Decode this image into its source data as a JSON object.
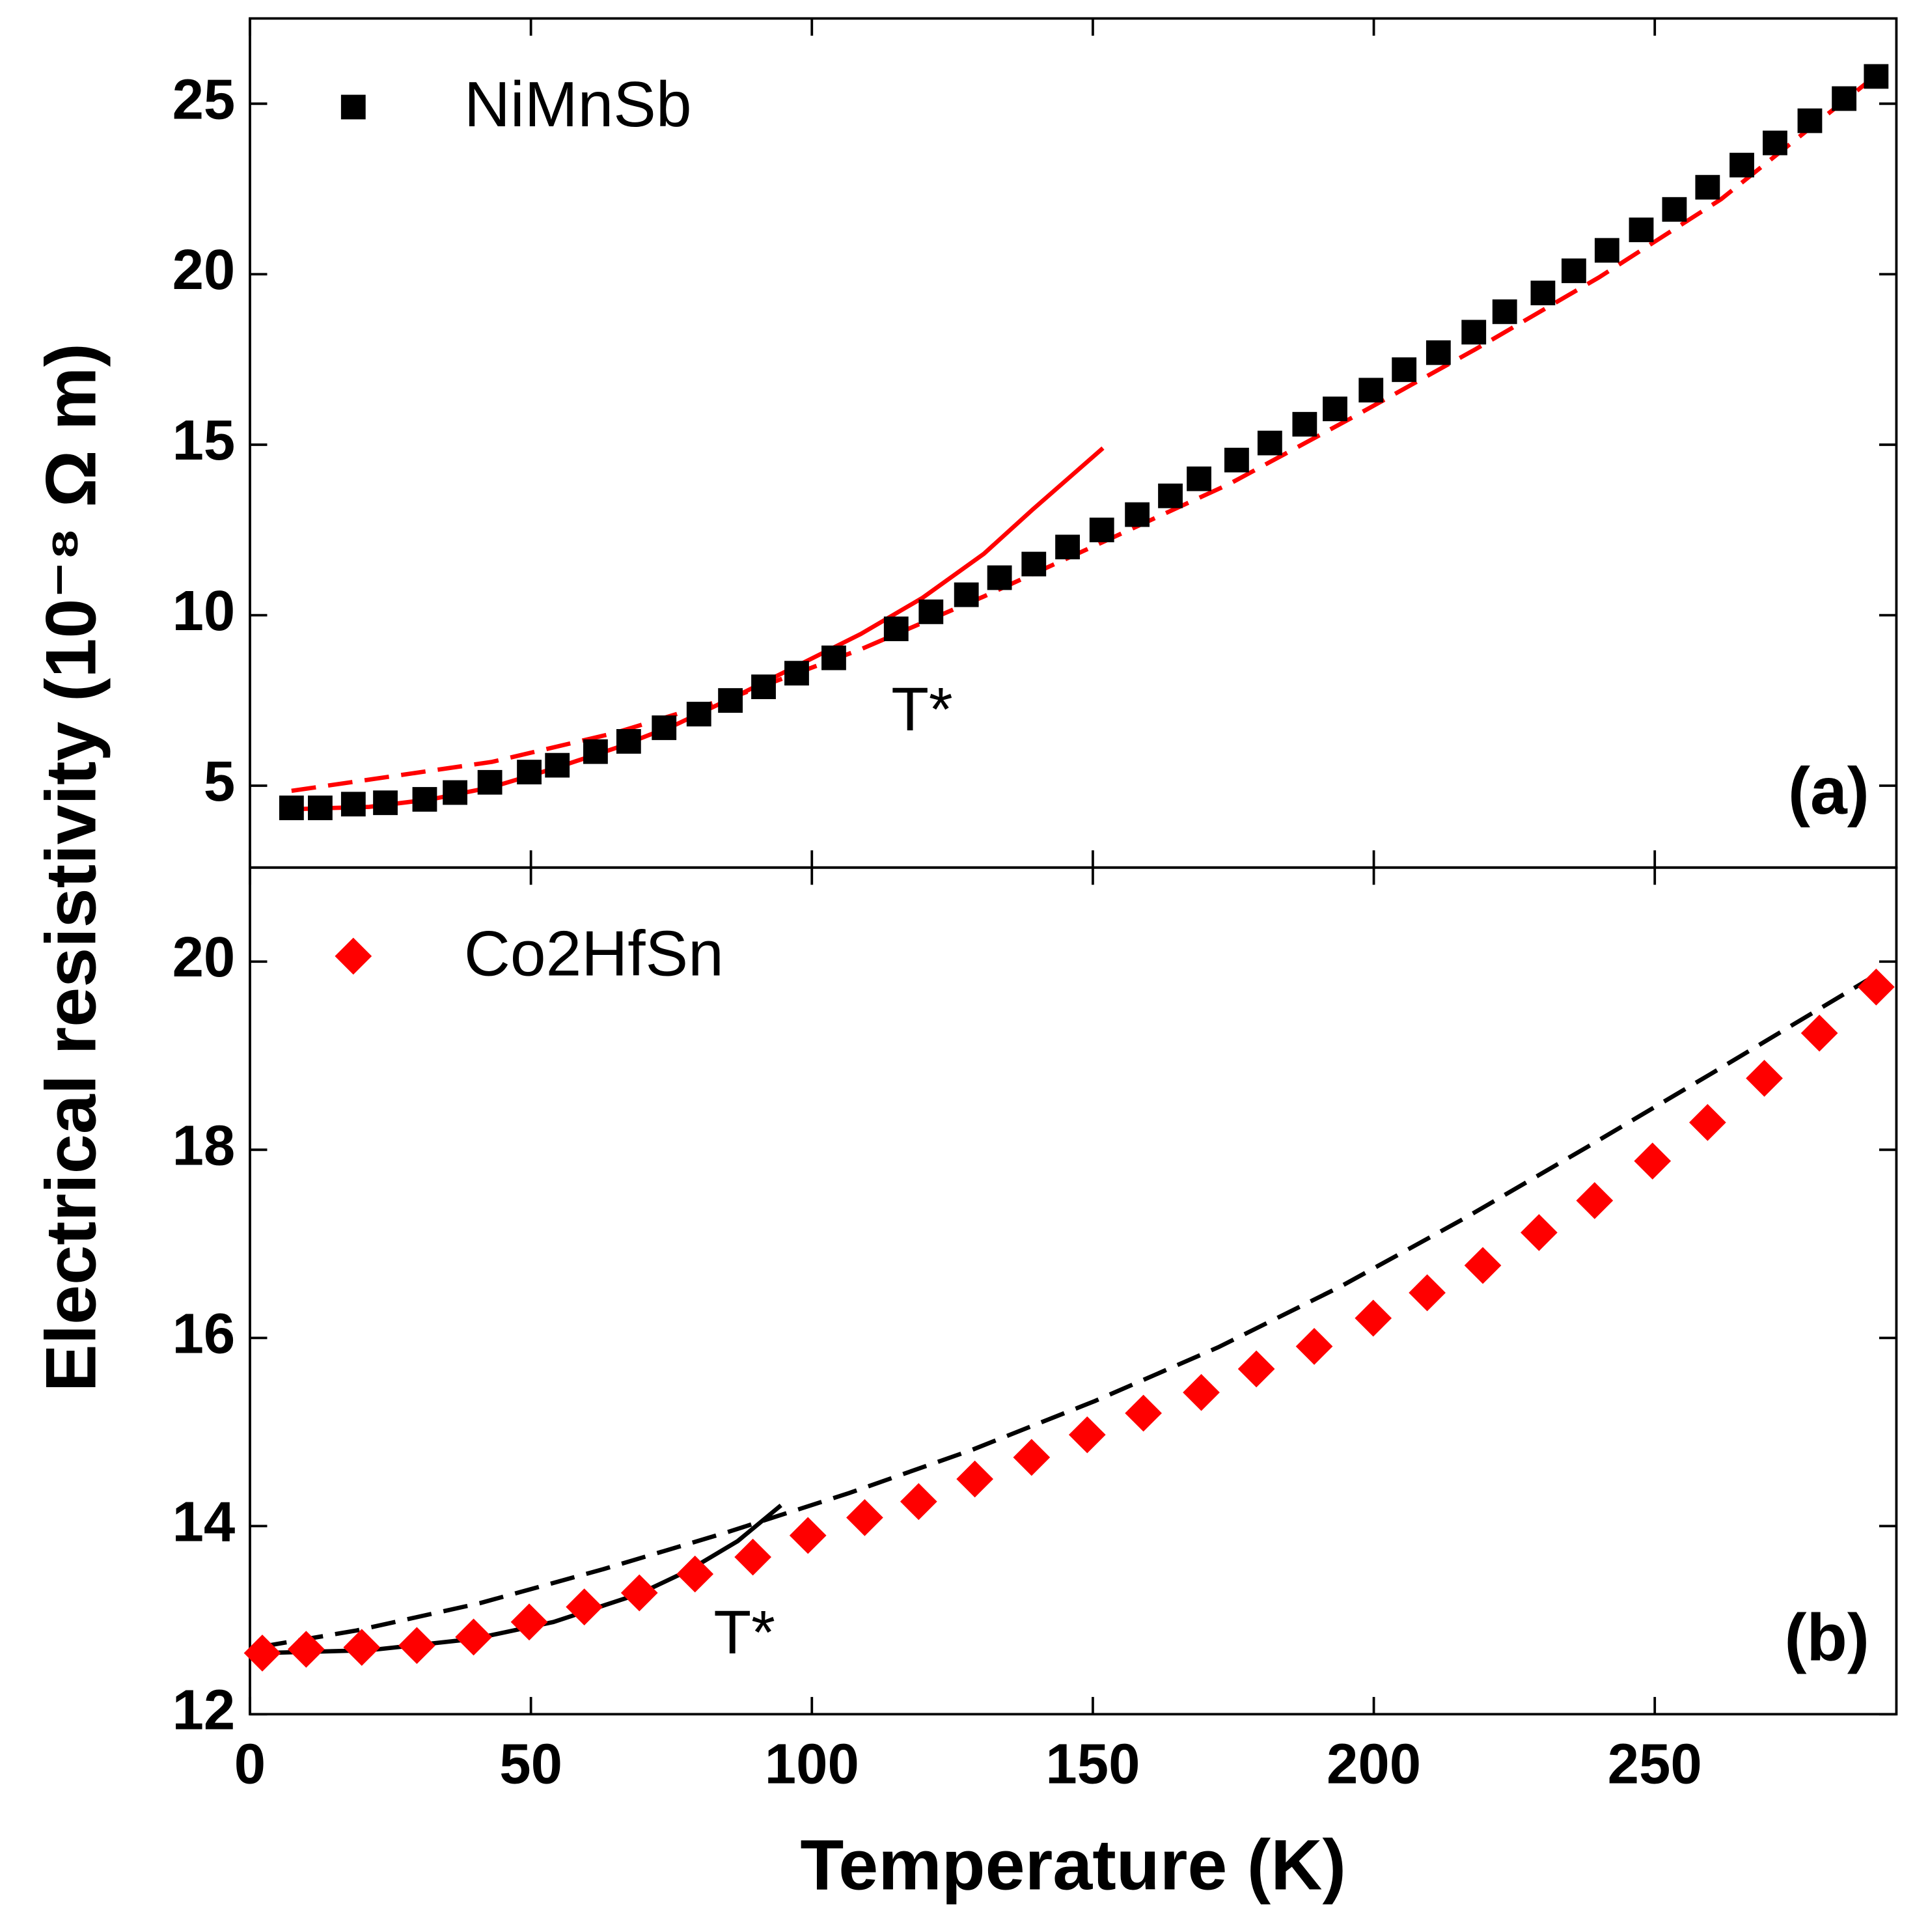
{
  "ylabel": "Electrical resistivity (10⁻⁸ Ω m)",
  "xlabel": "Temperature (K)",
  "chart_data": [
    {
      "type": "scatter",
      "panel_label": "(a)",
      "legend": "upper left",
      "xlim": [
        0,
        293
      ],
      "ylim": [
        2.6,
        27.5
      ],
      "xticks": [
        0,
        50,
        100,
        150,
        200,
        250
      ],
      "yticks": [
        5,
        10,
        15,
        20,
        25
      ],
      "series": [
        {
          "name": "NiMnSb",
          "color": "#000000",
          "marker": "square",
          "x": [
            7.4,
            12.5,
            18.4,
            24.1,
            31.1,
            36.5,
            42.7,
            49.7,
            54.7,
            61.5,
            67.4,
            73.7,
            79.9,
            85.5,
            91.4,
            97.3,
            103.9,
            115.0,
            121.2,
            127.5,
            133.4,
            139.5,
            145.5,
            151.6,
            157.9,
            163.8,
            168.9,
            175.6,
            181.5,
            187.7,
            193.1,
            199.5,
            205.4,
            211.5,
            217.8,
            223.3,
            230.1,
            235.6,
            241.5,
            247.6,
            253.5,
            259.4,
            265.5,
            271.4,
            277.6,
            283.7,
            289.4
          ],
          "values": [
            4.35,
            4.35,
            4.46,
            4.5,
            4.6,
            4.8,
            5.1,
            5.4,
            5.6,
            6.0,
            6.3,
            6.7,
            7.1,
            7.5,
            7.9,
            8.3,
            8.75,
            9.6,
            10.1,
            10.6,
            11.1,
            11.5,
            12.0,
            12.5,
            12.95,
            13.5,
            14.0,
            14.55,
            15.05,
            15.6,
            16.05,
            16.6,
            17.2,
            17.7,
            18.3,
            18.9,
            19.45,
            20.1,
            20.7,
            21.3,
            21.9,
            22.55,
            23.2,
            23.85,
            24.5,
            25.15,
            25.8
          ]
        },
        {
          "color": "#ff0000",
          "line": "solid",
          "x": [
            7.4,
            21.2,
            32.2,
            43.1,
            54.0,
            65.0,
            75.9,
            86.8,
            97.8,
            108.7,
            119.6,
            130.6,
            139.3,
            151.8
          ],
          "values": [
            4.31,
            4.38,
            4.6,
            4.96,
            5.5,
            6.1,
            6.8,
            7.65,
            8.55,
            9.45,
            10.5,
            11.8,
            13.1,
            14.9
          ]
        },
        {
          "color": "#ff0000",
          "line": "dashed",
          "x": [
            7.4,
            43.1,
            65.0,
            86.8,
            108.7,
            130.6,
            152.5,
            174.3,
            196.2,
            218.1,
            240.0,
            261.8,
            290.3
          ],
          "values": [
            4.85,
            5.7,
            6.55,
            7.65,
            9.0,
            10.55,
            12.2,
            13.85,
            15.8,
            17.8,
            19.9,
            22.2,
            25.95
          ]
        }
      ],
      "annotations": [
        {
          "text": "T*",
          "x": 119.6,
          "y": 7.1
        }
      ]
    },
    {
      "type": "scatter",
      "panel_label": "(b)",
      "legend": "upper left",
      "xlim": [
        0,
        293
      ],
      "ylim": [
        12,
        21
      ],
      "xticks": [
        0,
        50,
        100,
        150,
        200,
        250
      ],
      "yticks": [
        12,
        14,
        16,
        18,
        20
      ],
      "series": [
        {
          "name": "Co2HfSn",
          "color": "#ff0000",
          "marker": "diamond",
          "x": [
            2.2,
            10,
            19.9,
            29.7,
            39.8,
            49.7,
            59.5,
            69.3,
            79.2,
            89.5,
            99.3,
            109.4,
            119.0,
            129.0,
            139.1,
            149.0,
            159.0,
            169.3,
            179.1,
            189.4,
            199.9,
            209.5,
            219.4,
            229.4,
            239.3,
            249.6,
            259.4,
            269.5,
            279.3,
            289.4
          ],
          "values": [
            12.65,
            12.69,
            12.71,
            12.73,
            12.82,
            12.98,
            13.14,
            13.29,
            13.49,
            13.67,
            13.9,
            14.09,
            14.26,
            14.5,
            14.73,
            14.97,
            15.2,
            15.42,
            15.67,
            15.91,
            16.21,
            16.48,
            16.77,
            17.12,
            17.46,
            17.88,
            18.29,
            18.76,
            19.24,
            19.73
          ]
        },
        {
          "color": "#000000",
          "line": "solid",
          "x": [
            2.2,
            21.2,
            39.8,
            54.0,
            69.3,
            78.1,
            86.8,
            94.5
          ],
          "values": [
            12.65,
            12.68,
            12.8,
            12.98,
            13.28,
            13.53,
            13.84,
            14.22
          ]
        },
        {
          "color": "#000000",
          "line": "dashed",
          "x": [
            2.2,
            19.0,
            40.9,
            62.8,
            84.7,
            106.6,
            128.5,
            150.4,
            172.3,
            194.2,
            216.1,
            238.0,
            259.8,
            288.3
          ],
          "values": [
            12.72,
            12.89,
            13.18,
            13.54,
            13.93,
            14.35,
            14.81,
            15.33,
            15.9,
            16.55,
            17.27,
            18.03,
            18.8,
            19.82
          ]
        }
      ],
      "annotations": [
        {
          "text": "T*",
          "x": 88,
          "y": 12.82
        }
      ]
    }
  ]
}
